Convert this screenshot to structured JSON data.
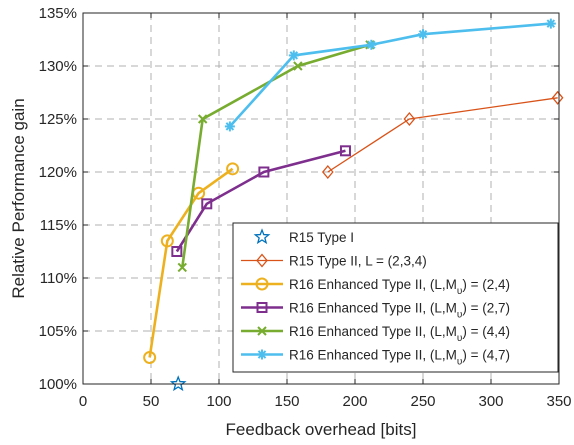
{
  "chart_data": {
    "type": "line",
    "title": "",
    "xlabel": "Feedback overhead [bits]",
    "ylabel": "Relative Performance gain",
    "xlim": [
      0,
      350
    ],
    "ylim": [
      100,
      135
    ],
    "x_ticks": [
      0,
      50,
      100,
      150,
      200,
      250,
      300,
      350
    ],
    "y_ticks": [
      100,
      105,
      110,
      115,
      120,
      125,
      130,
      135
    ],
    "y_tick_suffix": "%",
    "grid": true,
    "legend_position": "bottom-right",
    "series": [
      {
        "name": "R15 Type I",
        "color": "#0072BD",
        "marker": "star",
        "points": [
          [
            70,
            100
          ]
        ]
      },
      {
        "name": "R15 Type II, L = (2,3,4)",
        "color": "#D95319",
        "marker": "diamond",
        "points": [
          [
            180,
            120
          ],
          [
            240,
            125
          ],
          [
            349,
            127
          ]
        ]
      },
      {
        "name": "R16 Enhanced Type II, (L,M_υ) = (2,4)",
        "color": "#EDB120",
        "marker": "circle",
        "points": [
          [
            49,
            102.5
          ],
          [
            62,
            113.5
          ],
          [
            85,
            118
          ],
          [
            110,
            120.3
          ]
        ]
      },
      {
        "name": "R16 Enhanced Type II, (L,M_υ) = (2,7)",
        "color": "#7E2F8E",
        "marker": "square",
        "points": [
          [
            69,
            112.5
          ],
          [
            91,
            117
          ],
          [
            133,
            120
          ],
          [
            193,
            122
          ]
        ]
      },
      {
        "name": "R16 Enhanced Type II, (L,M_υ) = (4,4)",
        "color": "#77AC30",
        "marker": "x",
        "points": [
          [
            73,
            111
          ],
          [
            88,
            125
          ],
          [
            158,
            130
          ],
          [
            211,
            132
          ]
        ]
      },
      {
        "name": "R16 Enhanced Type II, (L,M_υ) = (4,7)",
        "color": "#4DBEEE",
        "marker": "asterisk",
        "points": [
          [
            108,
            124.3
          ],
          [
            155,
            131
          ],
          [
            212,
            132
          ],
          [
            250,
            133
          ],
          [
            344,
            134
          ]
        ]
      }
    ]
  }
}
